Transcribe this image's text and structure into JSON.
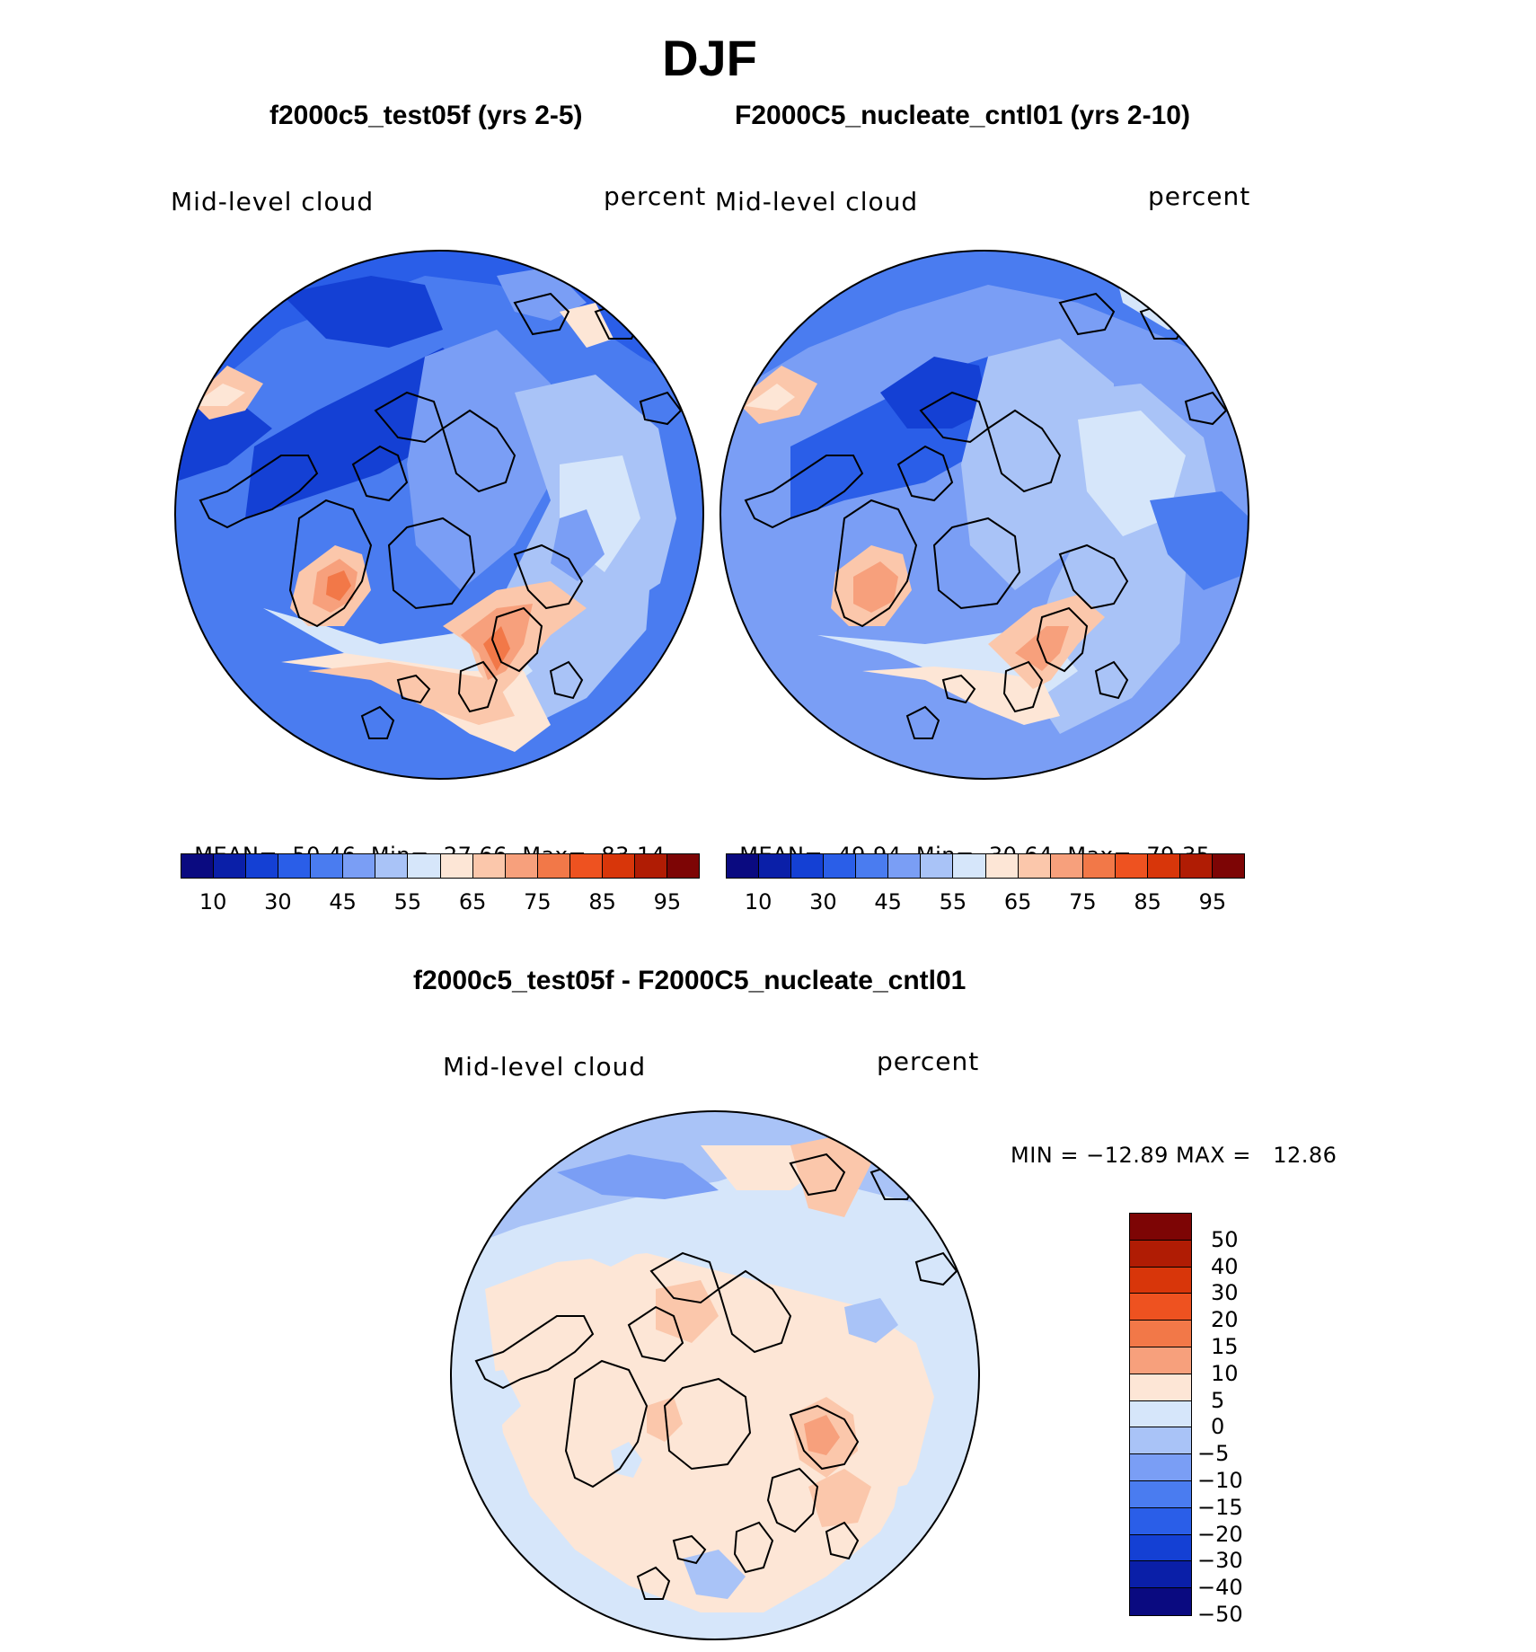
{
  "title": "DJF",
  "panels": [
    {
      "id": "test",
      "case_title": "f2000c5_test05f (yrs 2-5)",
      "variable_label": "Mid-level cloud",
      "units_label": "percent",
      "stats": {
        "mean_label": "MEAN=",
        "mean": "50.46",
        "min_label": "Min=",
        "min": "27.66",
        "max_label": "Max=",
        "max": "83.14"
      }
    },
    {
      "id": "control",
      "case_title": "F2000C5_nucleate_cntl01 (yrs 2-10)",
      "variable_label": "Mid-level cloud",
      "units_label": "percent",
      "stats": {
        "mean_label": "MEAN=",
        "mean": "49.94",
        "min_label": "Min=",
        "min": "30.64",
        "max_label": "Max=",
        "max": "79.35"
      }
    }
  ],
  "colorbar_top": {
    "colors": [
      "#0a0a80",
      "#0a1fa8",
      "#1440d4",
      "#2a5ee8",
      "#4a7cf0",
      "#7a9ef5",
      "#a9c3f7",
      "#d6e6fa",
      "#fde6d6",
      "#fbc7ab",
      "#f7a07c",
      "#f27848",
      "#ee5220",
      "#d8360a",
      "#b01c04",
      "#7d0505"
    ],
    "tick_labels": [
      "10",
      "30",
      "45",
      "55",
      "65",
      "75",
      "85",
      "95"
    ]
  },
  "difference_panel": {
    "title": "f2000c5_test05f - F2000C5_nucleate_cntl01",
    "variable_label": "Mid-level cloud",
    "units_label": "percent",
    "minmax_text": "MIN = −12.89 MAX =   12.86"
  },
  "colorbar_diff": {
    "colors": [
      "#7d0505",
      "#b01c04",
      "#d8360a",
      "#ee5220",
      "#f27848",
      "#f7a07c",
      "#fde6d6",
      "#d6e6fa",
      "#a9c3f7",
      "#7a9ef5",
      "#4a7cf0",
      "#2a5ee8",
      "#1440d4",
      "#0a1fa8",
      "#0a0a80"
    ],
    "tick_labels": [
      "50",
      "40",
      "30",
      "20",
      "15",
      "10",
      "5",
      "0",
      "−5",
      "−10",
      "−15",
      "−20",
      "−30",
      "−40",
      "−50"
    ]
  }
}
